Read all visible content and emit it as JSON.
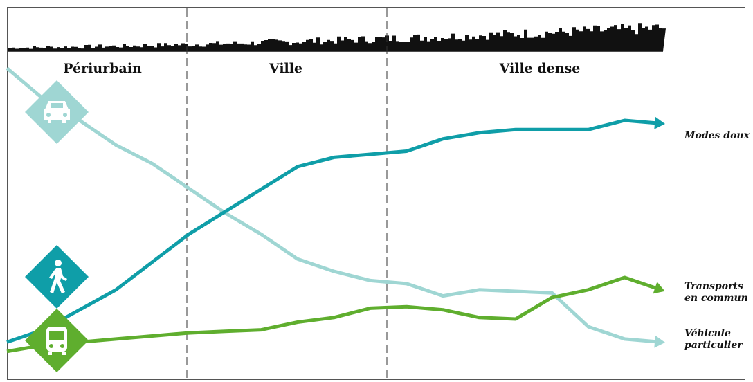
{
  "chart_data": {
    "type": "line",
    "zones": [
      "Périurbain",
      "Ville",
      "Ville dense"
    ],
    "series": [
      {
        "name": "Modes doux",
        "color": "#0f9ea8",
        "icon": "pedestrian-icon",
        "x": [
          0,
          1,
          3,
          4,
          5,
          8,
          9,
          10,
          11,
          12,
          13,
          14,
          15,
          16,
          17,
          18
        ],
        "y": [
          0.08,
          0.12,
          0.25,
          0.34,
          0.43,
          0.65,
          0.68,
          0.69,
          0.7,
          0.74,
          0.76,
          0.77,
          0.77,
          0.77,
          0.8,
          0.79
        ]
      },
      {
        "name": "Transports en commun",
        "color": "#5fae2e",
        "icon": "bus-icon",
        "x": [
          0,
          1,
          3,
          4,
          5,
          6,
          7,
          8,
          9,
          10,
          11,
          12,
          13,
          14,
          15,
          16,
          17,
          18
        ],
        "y": [
          0.05,
          0.07,
          0.09,
          0.1,
          0.11,
          0.115,
          0.12,
          0.145,
          0.16,
          0.19,
          0.195,
          0.185,
          0.16,
          0.155,
          0.225,
          0.25,
          0.29,
          0.25
        ]
      },
      {
        "name": "Véhicule particulier",
        "color": "#9fd6d3",
        "icon": "car-icon",
        "x": [
          0,
          1,
          2,
          3,
          4,
          5,
          6,
          7,
          8,
          9,
          10,
          11,
          12,
          13,
          14,
          15,
          16,
          17,
          18
        ],
        "y": [
          0.97,
          0.87,
          0.8,
          0.72,
          0.66,
          0.58,
          0.5,
          0.43,
          0.35,
          0.31,
          0.28,
          0.27,
          0.23,
          0.25,
          0.245,
          0.24,
          0.13,
          0.09,
          0.08
        ]
      }
    ],
    "grid": false,
    "legend": "right"
  }
}
